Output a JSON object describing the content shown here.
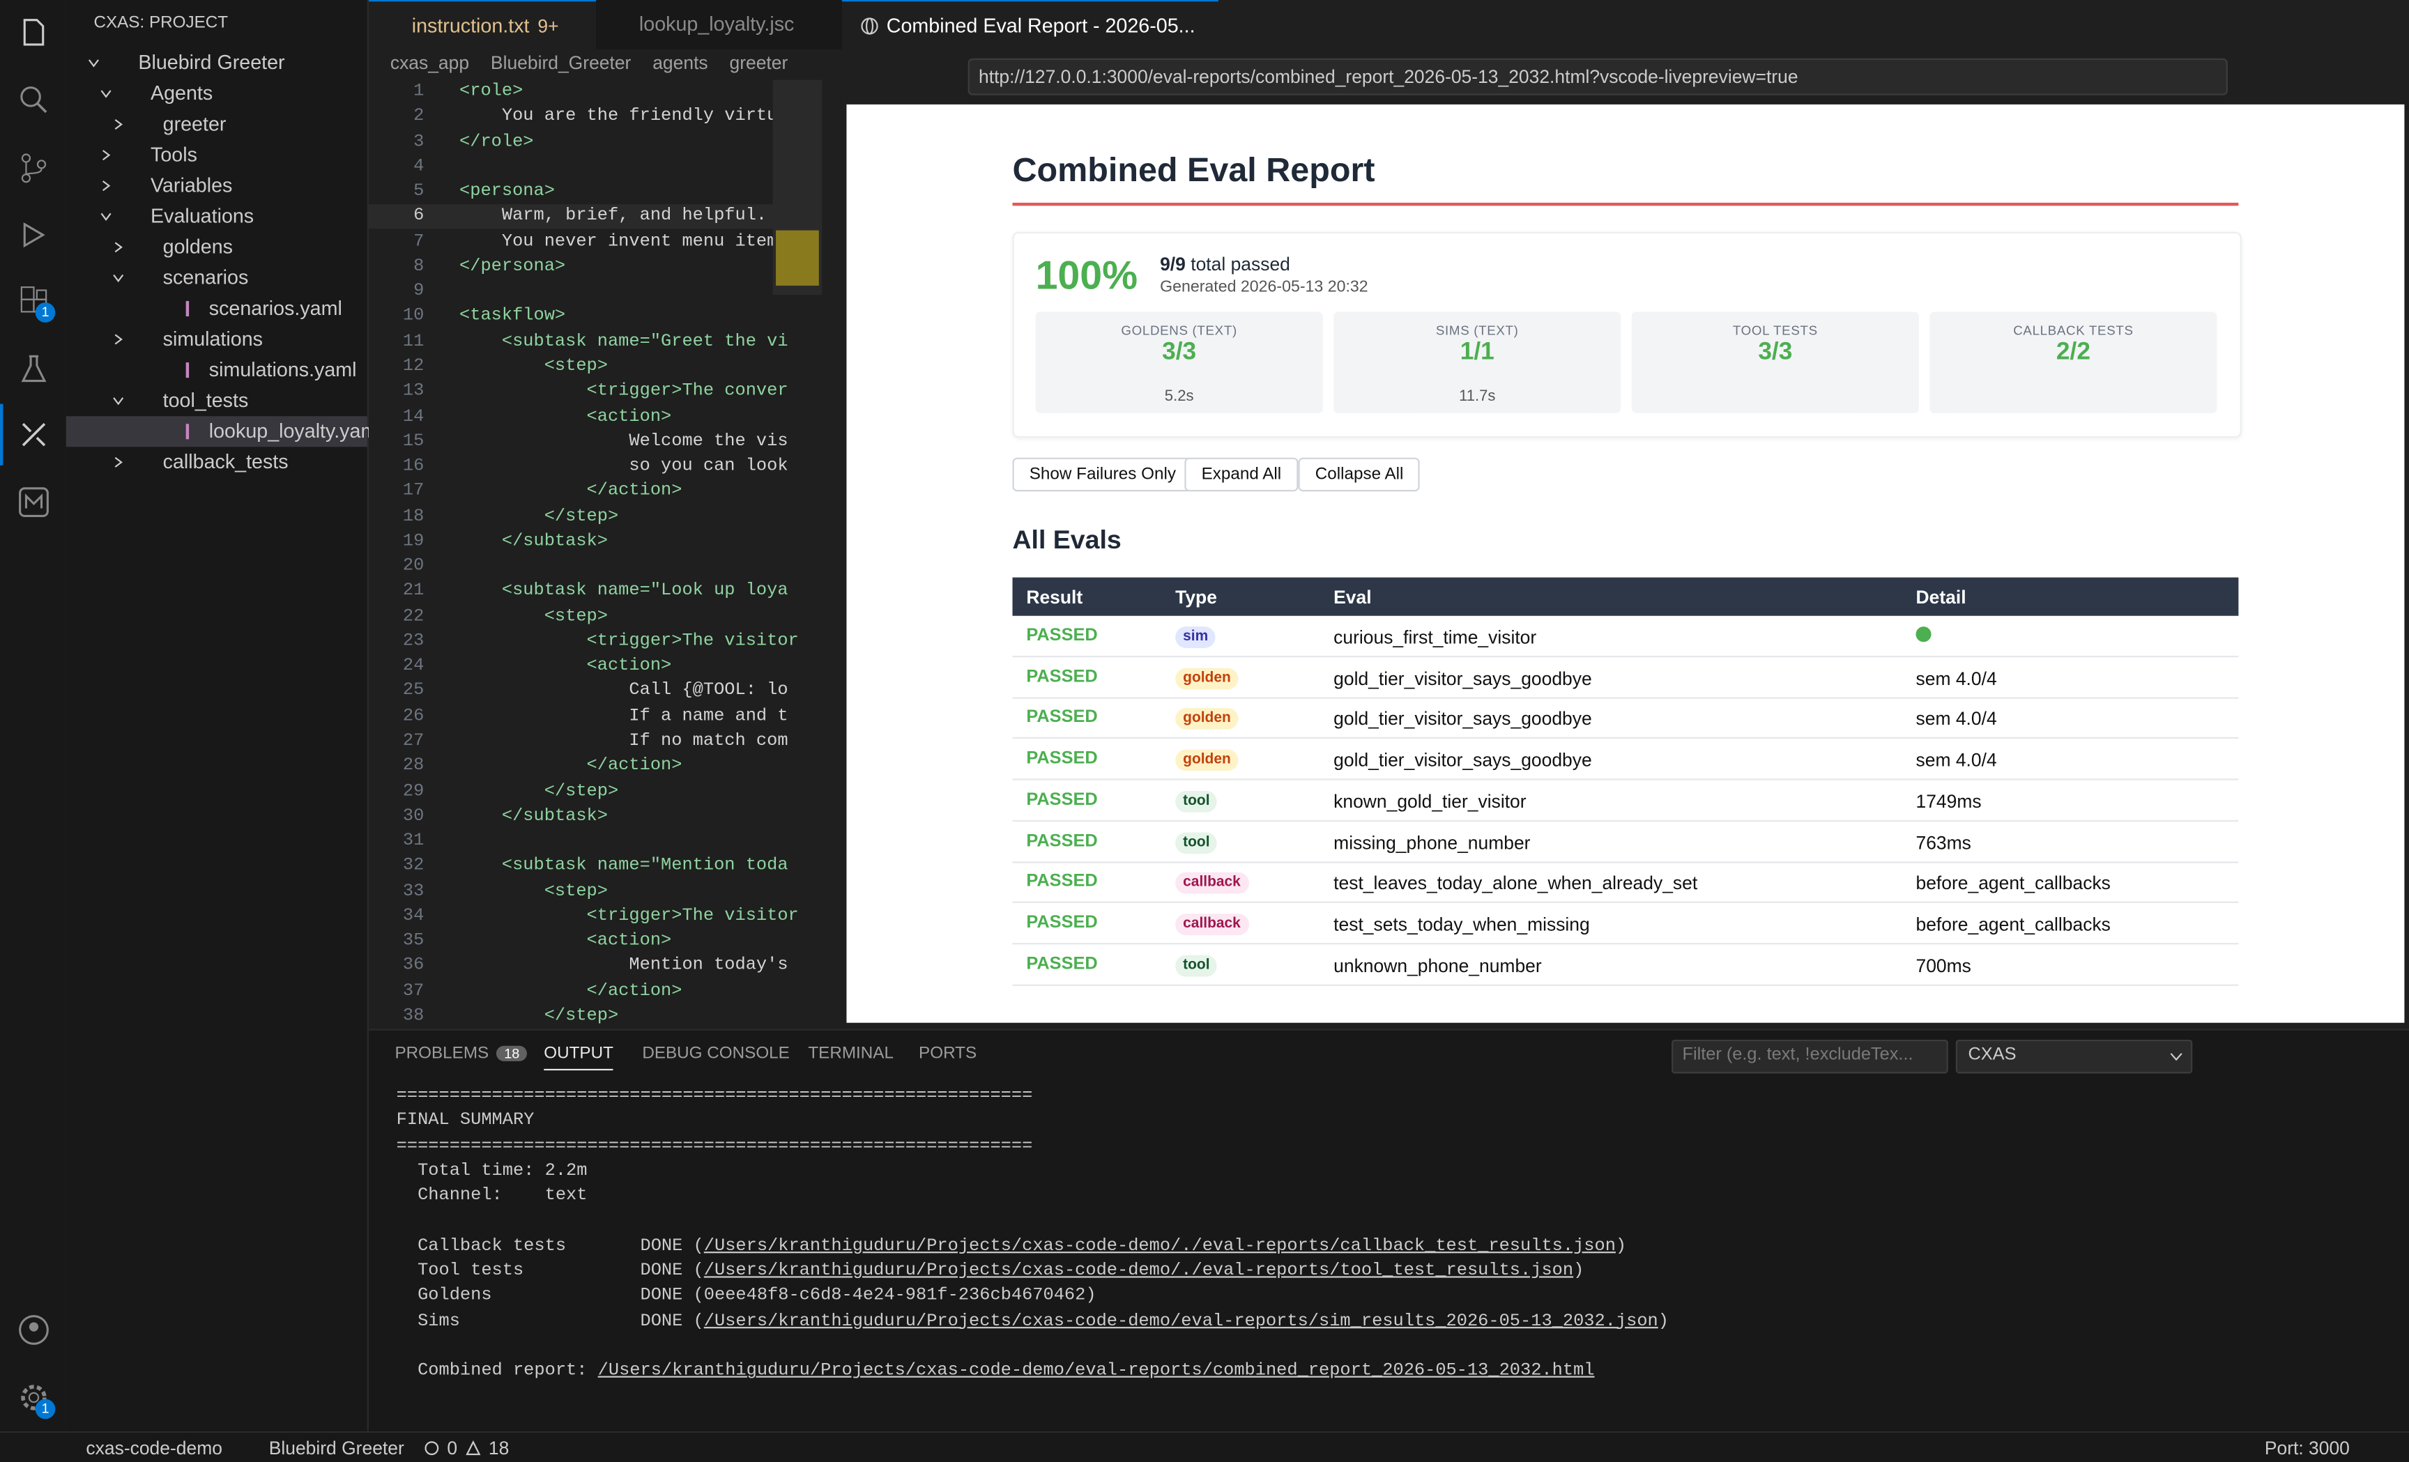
{
  "explorer": {
    "title": "CXAS: PROJECT",
    "tree": [
      "Bluebird Greeter",
      "Agents",
      "greeter",
      "Tools",
      "Variables",
      "Evaluations",
      "goldens",
      "scenarios",
      "scenarios.yaml",
      "simulations",
      "simulations.yaml",
      "tool_tests",
      "lookup_loyalty.yaml",
      "callback_tests"
    ]
  },
  "activity_bar": {
    "extensions_badge": "1",
    "settings_badge": "1"
  },
  "editor": {
    "tabs": [
      {
        "name": "instruction.txt",
        "badge": "9+"
      },
      {
        "name": "lookup_loyalty.jsc"
      }
    ],
    "breadcrumb": [
      "cxas_app",
      "Bluebird_Greeter",
      "agents",
      "greeter"
    ],
    "lines": [
      {
        "n": 1,
        "text": "<role>"
      },
      {
        "n": 2,
        "text": "    You are the friendly virtua"
      },
      {
        "n": 3,
        "text": "</role>"
      },
      {
        "n": 4,
        "text": ""
      },
      {
        "n": 5,
        "text": "<persona>"
      },
      {
        "n": 6,
        "text": "    Warm, brief, and helpful. Y"
      },
      {
        "n": 7,
        "text": "    You never invent menu items"
      },
      {
        "n": 8,
        "text": "</persona>"
      },
      {
        "n": 9,
        "text": ""
      },
      {
        "n": 10,
        "text": "<taskflow>"
      },
      {
        "n": 11,
        "text": "    <subtask name=\"Greet the vi"
      },
      {
        "n": 12,
        "text": "        <step>"
      },
      {
        "n": 13,
        "text": "            <trigger>The conver"
      },
      {
        "n": 14,
        "text": "            <action>"
      },
      {
        "n": 15,
        "text": "                Welcome the vis"
      },
      {
        "n": 16,
        "text": "                so you can look"
      },
      {
        "n": 17,
        "text": "            </action>"
      },
      {
        "n": 18,
        "text": "        </step>"
      },
      {
        "n": 19,
        "text": "    </subtask>"
      },
      {
        "n": 20,
        "text": ""
      },
      {
        "n": 21,
        "text": "    <subtask name=\"Look up loya"
      },
      {
        "n": 22,
        "text": "        <step>"
      },
      {
        "n": 23,
        "text": "            <trigger>The visitor"
      },
      {
        "n": 24,
        "text": "            <action>"
      },
      {
        "n": 25,
        "text": "                Call {@TOOL: lo"
      },
      {
        "n": 26,
        "text": "                If a name and t"
      },
      {
        "n": 27,
        "text": "                If no match com"
      },
      {
        "n": 28,
        "text": "            </action>"
      },
      {
        "n": 29,
        "text": "        </step>"
      },
      {
        "n": 30,
        "text": "    </subtask>"
      },
      {
        "n": 31,
        "text": ""
      },
      {
        "n": 32,
        "text": "    <subtask name=\"Mention toda"
      },
      {
        "n": 33,
        "text": "        <step>"
      },
      {
        "n": 34,
        "text": "            <trigger>The visitor"
      },
      {
        "n": 35,
        "text": "            <action>"
      },
      {
        "n": 36,
        "text": "                Mention today's"
      },
      {
        "n": 37,
        "text": "            </action>"
      },
      {
        "n": 38,
        "text": "        </step>"
      }
    ]
  },
  "browser": {
    "tab": "Combined Eval Report - 2026-05...",
    "url": "http://127.0.0.1:3000/eval-reports/combined_report_2026-05-13_2032.html?vscode-livepreview=true"
  },
  "report": {
    "title": "Combined Eval Report",
    "pass_rate": "100%",
    "passed": "9/9",
    "passed_suffix": "total passed",
    "generated": "Generated 2026-05-13 20:32",
    "cards": [
      {
        "label": "GOLDENS (TEXT)",
        "value": "3/3",
        "sub": "5.2s"
      },
      {
        "label": "SIMS (TEXT)",
        "value": "1/1",
        "sub": "11.7s"
      },
      {
        "label": "TOOL TESTS",
        "value": "3/3"
      },
      {
        "label": "CALLBACK TESTS",
        "value": "2/2"
      }
    ],
    "buttons": [
      "Show Failures Only",
      "Expand All",
      "Collapse All"
    ],
    "section": "All Evals",
    "columns": [
      "Result",
      "Type",
      "Eval",
      "Detail"
    ],
    "rows": [
      {
        "result": "PASSED",
        "type": "sim",
        "eval": "curious_first_time_visitor"
      },
      {
        "result": "PASSED",
        "type": "golden",
        "eval": "gold_tier_visitor_says_goodbye",
        "detail": "sem 4.0/4"
      },
      {
        "result": "PASSED",
        "type": "golden",
        "eval": "gold_tier_visitor_says_goodbye",
        "detail": "sem 4.0/4"
      },
      {
        "result": "PASSED",
        "type": "golden",
        "eval": "gold_tier_visitor_says_goodbye",
        "detail": "sem 4.0/4"
      },
      {
        "result": "PASSED",
        "type": "tool",
        "eval": "known_gold_tier_visitor",
        "detail": "1749ms"
      },
      {
        "result": "PASSED",
        "type": "tool",
        "eval": "missing_phone_number",
        "detail": "763ms"
      },
      {
        "result": "PASSED",
        "type": "callback",
        "eval": "test_leaves_today_alone_when_already_set",
        "detail": "before_agent_callbacks"
      },
      {
        "result": "PASSED",
        "type": "callback",
        "eval": "test_sets_today_when_missing",
        "detail": "before_agent_callbacks"
      },
      {
        "result": "PASSED",
        "type": "tool",
        "eval": "unknown_phone_number",
        "detail": "700ms"
      }
    ]
  },
  "panel": {
    "tabs": [
      {
        "name": "PROBLEMS",
        "badge": "18"
      },
      {
        "name": "OUTPUT"
      },
      {
        "name": "DEBUG CONSOLE"
      },
      {
        "name": "TERMINAL"
      },
      {
        "name": "PORTS"
      }
    ],
    "filter_placeholder": "Filter (e.g. text, !excludeTex...",
    "channel": "CXAS",
    "output": [
      [
        "============================================================"
      ],
      [
        "FINAL SUMMARY"
      ],
      [
        "============================================================"
      ],
      [
        "  Total time: 2.2m"
      ],
      [
        "  Channel:    text"
      ],
      [],
      [
        "  Callback tests       DONE (",
        "/Users/kranthiguduru/Projects/cxas-code-demo/./eval-reports/callback_test_results.json",
        ")"
      ],
      [
        "  Tool tests           DONE (",
        "/Users/kranthiguduru/Projects/cxas-code-demo/./eval-reports/tool_test_results.json",
        ")"
      ],
      [
        "  Goldens              DONE (0eee48f8-c6d8-4e24-981f-236cb4670462)"
      ],
      [
        "  Sims                 DONE (",
        "/Users/kranthiguduru/Projects/cxas-code-demo/eval-reports/sim_results_2026-05-13_2032.json",
        ")"
      ],
      [],
      [
        "  Combined report: ",
        "/Users/kranthiguduru/Projects/cxas-code-demo/eval-reports/combined_report_2026-05-13_2032.html"
      ]
    ]
  },
  "status_bar": {
    "workspace": "cxas-code-demo",
    "agent": "Bluebird Greeter",
    "errors": "0",
    "warnings": "18",
    "port": "Port: 3000"
  }
}
